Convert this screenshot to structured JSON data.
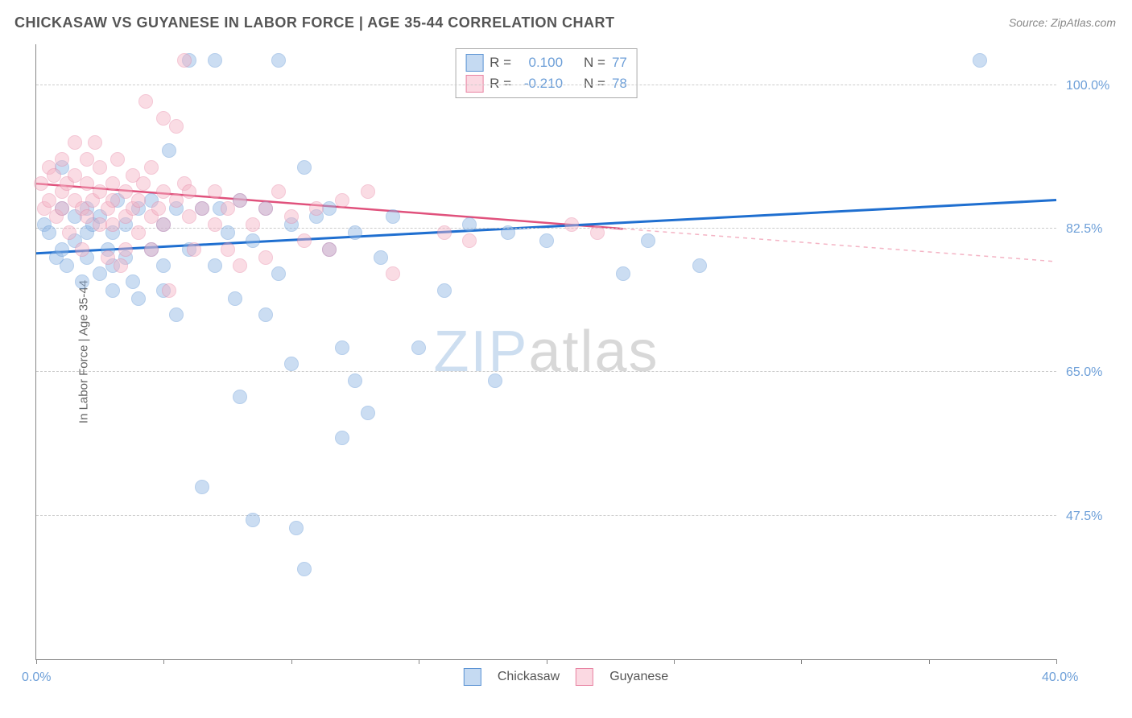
{
  "title": "CHICKASAW VS GUYANESE IN LABOR FORCE | AGE 35-44 CORRELATION CHART",
  "source": "Source: ZipAtlas.com",
  "ylabel": "In Labor Force | Age 35-44",
  "watermark_part1": "ZIP",
  "watermark_part2": "atlas",
  "chart": {
    "type": "scatter",
    "xlim": [
      0,
      40
    ],
    "ylim": [
      30,
      105
    ],
    "background_color": "#ffffff",
    "grid_color": "#cccccc",
    "marker_radius": 9,
    "marker_opacity": 0.45,
    "title_fontsize": 18,
    "label_fontsize": 15,
    "tick_fontsize": 16,
    "tick_color": "#6d9fd8",
    "yticks": [
      {
        "value": 47.5,
        "label": "47.5%"
      },
      {
        "value": 65.0,
        "label": "65.0%"
      },
      {
        "value": 82.5,
        "label": "82.5%"
      },
      {
        "value": 100.0,
        "label": "100.0%"
      }
    ],
    "xticks": [
      {
        "value": 0,
        "label": "0.0%"
      },
      {
        "value": 5,
        "label": ""
      },
      {
        "value": 10,
        "label": ""
      },
      {
        "value": 15,
        "label": ""
      },
      {
        "value": 20,
        "label": ""
      },
      {
        "value": 25,
        "label": ""
      },
      {
        "value": 30,
        "label": ""
      },
      {
        "value": 35,
        "label": ""
      },
      {
        "value": 40,
        "label": "40.0%"
      }
    ],
    "series": [
      {
        "name": "Chickasaw",
        "color": "#8db5e4",
        "border_color": "#5d94d4",
        "R": "0.100",
        "N": "77",
        "trend": {
          "x1": 0,
          "y1": 79.5,
          "x2": 40,
          "y2": 86,
          "stroke": "#1f6fd0",
          "width": 3,
          "dash": "none"
        },
        "points": [
          [
            0.3,
            83
          ],
          [
            0.5,
            82
          ],
          [
            0.8,
            79
          ],
          [
            1,
            85
          ],
          [
            1,
            90
          ],
          [
            1,
            80
          ],
          [
            1.2,
            78
          ],
          [
            1.5,
            81
          ],
          [
            1.5,
            84
          ],
          [
            1.8,
            76
          ],
          [
            2,
            82
          ],
          [
            2,
            85
          ],
          [
            2,
            79
          ],
          [
            2.2,
            83
          ],
          [
            2.5,
            84
          ],
          [
            2.5,
            77
          ],
          [
            2.8,
            80
          ],
          [
            3,
            78
          ],
          [
            3,
            82
          ],
          [
            3,
            75
          ],
          [
            3.2,
            86
          ],
          [
            3.5,
            79
          ],
          [
            3.5,
            83
          ],
          [
            3.8,
            76
          ],
          [
            4,
            85
          ],
          [
            4,
            74
          ],
          [
            4.5,
            80
          ],
          [
            4.5,
            86
          ],
          [
            5,
            83
          ],
          [
            5,
            78
          ],
          [
            5,
            75
          ],
          [
            5.2,
            92
          ],
          [
            5.5,
            85
          ],
          [
            5.5,
            72
          ],
          [
            6,
            80
          ],
          [
            6,
            103
          ],
          [
            6.5,
            85
          ],
          [
            6.5,
            51
          ],
          [
            7,
            78
          ],
          [
            7,
            103
          ],
          [
            7.2,
            85
          ],
          [
            7.5,
            82
          ],
          [
            7.8,
            74
          ],
          [
            8,
            86
          ],
          [
            8,
            62
          ],
          [
            8.5,
            81
          ],
          [
            8.5,
            47
          ],
          [
            9,
            85
          ],
          [
            9,
            72
          ],
          [
            9.5,
            77
          ],
          [
            9.5,
            103
          ],
          [
            10,
            83
          ],
          [
            10,
            66
          ],
          [
            10.2,
            46
          ],
          [
            10.5,
            90
          ],
          [
            10.5,
            41
          ],
          [
            11,
            84
          ],
          [
            11.5,
            80
          ],
          [
            11.5,
            85
          ],
          [
            12,
            68
          ],
          [
            12,
            57
          ],
          [
            12.5,
            82
          ],
          [
            12.5,
            64
          ],
          [
            13,
            60
          ],
          [
            13.5,
            79
          ],
          [
            14,
            84
          ],
          [
            15,
            68
          ],
          [
            16,
            75
          ],
          [
            17,
            83
          ],
          [
            18,
            64
          ],
          [
            18.5,
            82
          ],
          [
            20,
            81
          ],
          [
            23,
            77
          ],
          [
            24,
            81
          ],
          [
            26,
            78
          ],
          [
            37,
            103
          ]
        ]
      },
      {
        "name": "Guyanese",
        "color": "#f4b3c4",
        "border_color": "#e884a3",
        "R": "-0.210",
        "N": "78",
        "trend_solid": {
          "x1": 0,
          "y1": 88,
          "x2": 23,
          "y2": 82.5,
          "stroke": "#e0517c",
          "width": 2.5,
          "dash": "none"
        },
        "trend_dash": {
          "x1": 23,
          "y1": 82.5,
          "x2": 40,
          "y2": 78.5,
          "stroke": "#f4b3c4",
          "width": 1.5,
          "dash": "5,5"
        },
        "points": [
          [
            0.2,
            88
          ],
          [
            0.3,
            85
          ],
          [
            0.5,
            90
          ],
          [
            0.5,
            86
          ],
          [
            0.7,
            89
          ],
          [
            0.8,
            84
          ],
          [
            1,
            91
          ],
          [
            1,
            87
          ],
          [
            1,
            85
          ],
          [
            1.2,
            88
          ],
          [
            1.3,
            82
          ],
          [
            1.5,
            86
          ],
          [
            1.5,
            89
          ],
          [
            1.5,
            93
          ],
          [
            1.8,
            85
          ],
          [
            1.8,
            80
          ],
          [
            2,
            88
          ],
          [
            2,
            84
          ],
          [
            2,
            91
          ],
          [
            2.2,
            86
          ],
          [
            2.3,
            93
          ],
          [
            2.5,
            87
          ],
          [
            2.5,
            83
          ],
          [
            2.5,
            90
          ],
          [
            2.8,
            85
          ],
          [
            2.8,
            79
          ],
          [
            3,
            88
          ],
          [
            3,
            83
          ],
          [
            3,
            86
          ],
          [
            3.2,
            91
          ],
          [
            3.3,
            78
          ],
          [
            3.5,
            84
          ],
          [
            3.5,
            87
          ],
          [
            3.5,
            80
          ],
          [
            3.8,
            85
          ],
          [
            3.8,
            89
          ],
          [
            4,
            82
          ],
          [
            4,
            86
          ],
          [
            4.2,
            88
          ],
          [
            4.3,
            98
          ],
          [
            4.5,
            84
          ],
          [
            4.5,
            90
          ],
          [
            4.5,
            80
          ],
          [
            4.8,
            85
          ],
          [
            5,
            87
          ],
          [
            5,
            83
          ],
          [
            5,
            96
          ],
          [
            5.2,
            75
          ],
          [
            5.5,
            86
          ],
          [
            5.5,
            95
          ],
          [
            5.8,
            88
          ],
          [
            5.8,
            103
          ],
          [
            6,
            84
          ],
          [
            6,
            87
          ],
          [
            6.2,
            80
          ],
          [
            6.5,
            85
          ],
          [
            7,
            83
          ],
          [
            7,
            87
          ],
          [
            7.5,
            80
          ],
          [
            7.5,
            85
          ],
          [
            8,
            86
          ],
          [
            8,
            78
          ],
          [
            8.5,
            83
          ],
          [
            9,
            85
          ],
          [
            9,
            79
          ],
          [
            9.5,
            87
          ],
          [
            10,
            84
          ],
          [
            10.5,
            81
          ],
          [
            11,
            85
          ],
          [
            11.5,
            80
          ],
          [
            12,
            86
          ],
          [
            13,
            87
          ],
          [
            14,
            77
          ],
          [
            16,
            82
          ],
          [
            17,
            81
          ],
          [
            21,
            83
          ],
          [
            22,
            82
          ]
        ]
      }
    ],
    "legend_top": {
      "rows": [
        {
          "swatch_fill": "#c5daf2",
          "swatch_border": "#5d94d4",
          "R_label": "R =",
          "R_val": "0.100",
          "N_label": "N =",
          "N_val": "77"
        },
        {
          "swatch_fill": "#fbd9e2",
          "swatch_border": "#e884a3",
          "R_label": "R =",
          "R_val": "-0.210",
          "N_label": "N =",
          "N_val": "78"
        }
      ]
    },
    "legend_bottom": [
      {
        "swatch_fill": "#c5daf2",
        "swatch_border": "#5d94d4",
        "label": "Chickasaw"
      },
      {
        "swatch_fill": "#fbd9e2",
        "swatch_border": "#e884a3",
        "label": "Guyanese"
      }
    ]
  }
}
